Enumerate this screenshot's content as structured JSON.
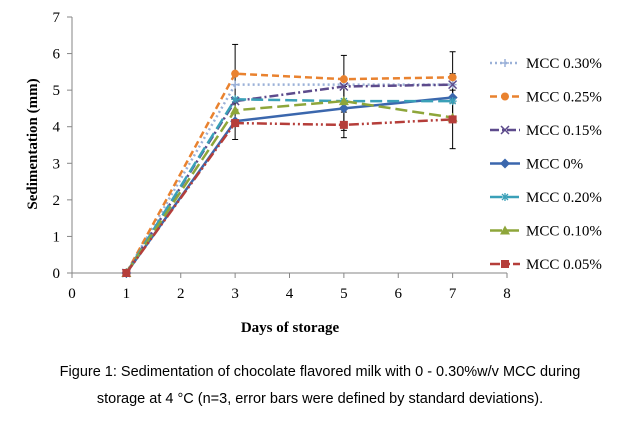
{
  "chart_data": {
    "type": "line",
    "title": "",
    "xlabel": "Days of storage",
    "ylabel": "Sedimentation (mm)",
    "xlim": [
      0,
      8
    ],
    "ylim": [
      0,
      7
    ],
    "xticks": [
      "0",
      "1",
      "2",
      "3",
      "4",
      "5",
      "6",
      "7",
      "8"
    ],
    "yticks": [
      "0",
      "1",
      "2",
      "3",
      "4",
      "5",
      "6",
      "7"
    ],
    "grid": false,
    "legend_position": "right",
    "x": [
      1,
      3,
      5,
      7
    ],
    "series": [
      {
        "name": "MCC 0.30%",
        "values": [
          0,
          5.15,
          5.15,
          5.15
        ],
        "errors": [
          0,
          0,
          0,
          0
        ],
        "color": "#9bb1d8",
        "dash": "dotted",
        "marker": "plus"
      },
      {
        "name": "MCC 0.25%",
        "values": [
          0,
          5.45,
          5.3,
          5.35
        ],
        "errors": [
          0,
          0.8,
          0.65,
          0.7
        ],
        "color": "#e9822f",
        "dash": "dashed",
        "marker": "circle"
      },
      {
        "name": "MCC 0.15%",
        "values": [
          0,
          4.7,
          5.1,
          5.15
        ],
        "errors": [
          0,
          0,
          0,
          0
        ],
        "color": "#5d4b8c",
        "dash": "dashdot",
        "marker": "x"
      },
      {
        "name": "MCC 0%",
        "values": [
          0,
          4.15,
          4.5,
          4.8
        ],
        "errors": [
          0,
          0.5,
          0.6,
          0.65
        ],
        "color": "#3b67ad",
        "dash": "solid",
        "marker": "diamond"
      },
      {
        "name": "MCC 0.20%",
        "values": [
          0,
          4.75,
          4.7,
          4.7
        ],
        "errors": [
          0,
          0,
          0,
          0
        ],
        "color": "#3aa0b8",
        "dash": "longdash",
        "marker": "star"
      },
      {
        "name": "MCC 0.10%",
        "values": [
          0,
          4.45,
          4.7,
          4.25
        ],
        "errors": [
          0,
          0,
          0,
          0
        ],
        "color": "#8ea63a",
        "dash": "longdash",
        "marker": "triangle"
      },
      {
        "name": "MCC 0.05%",
        "values": [
          0,
          4.1,
          4.05,
          4.2
        ],
        "errors": [
          0,
          0,
          0.35,
          0.8
        ],
        "color": "#b53e3a",
        "dash": "dashdotdot",
        "marker": "square"
      }
    ]
  },
  "caption": {
    "line1": "Figure 1: Sedimentation of chocolate flavored milk with 0 - 0.30%w/v MCC during",
    "line2": "storage at 4 °C (n=3, error bars were defined by standard deviations)."
  }
}
